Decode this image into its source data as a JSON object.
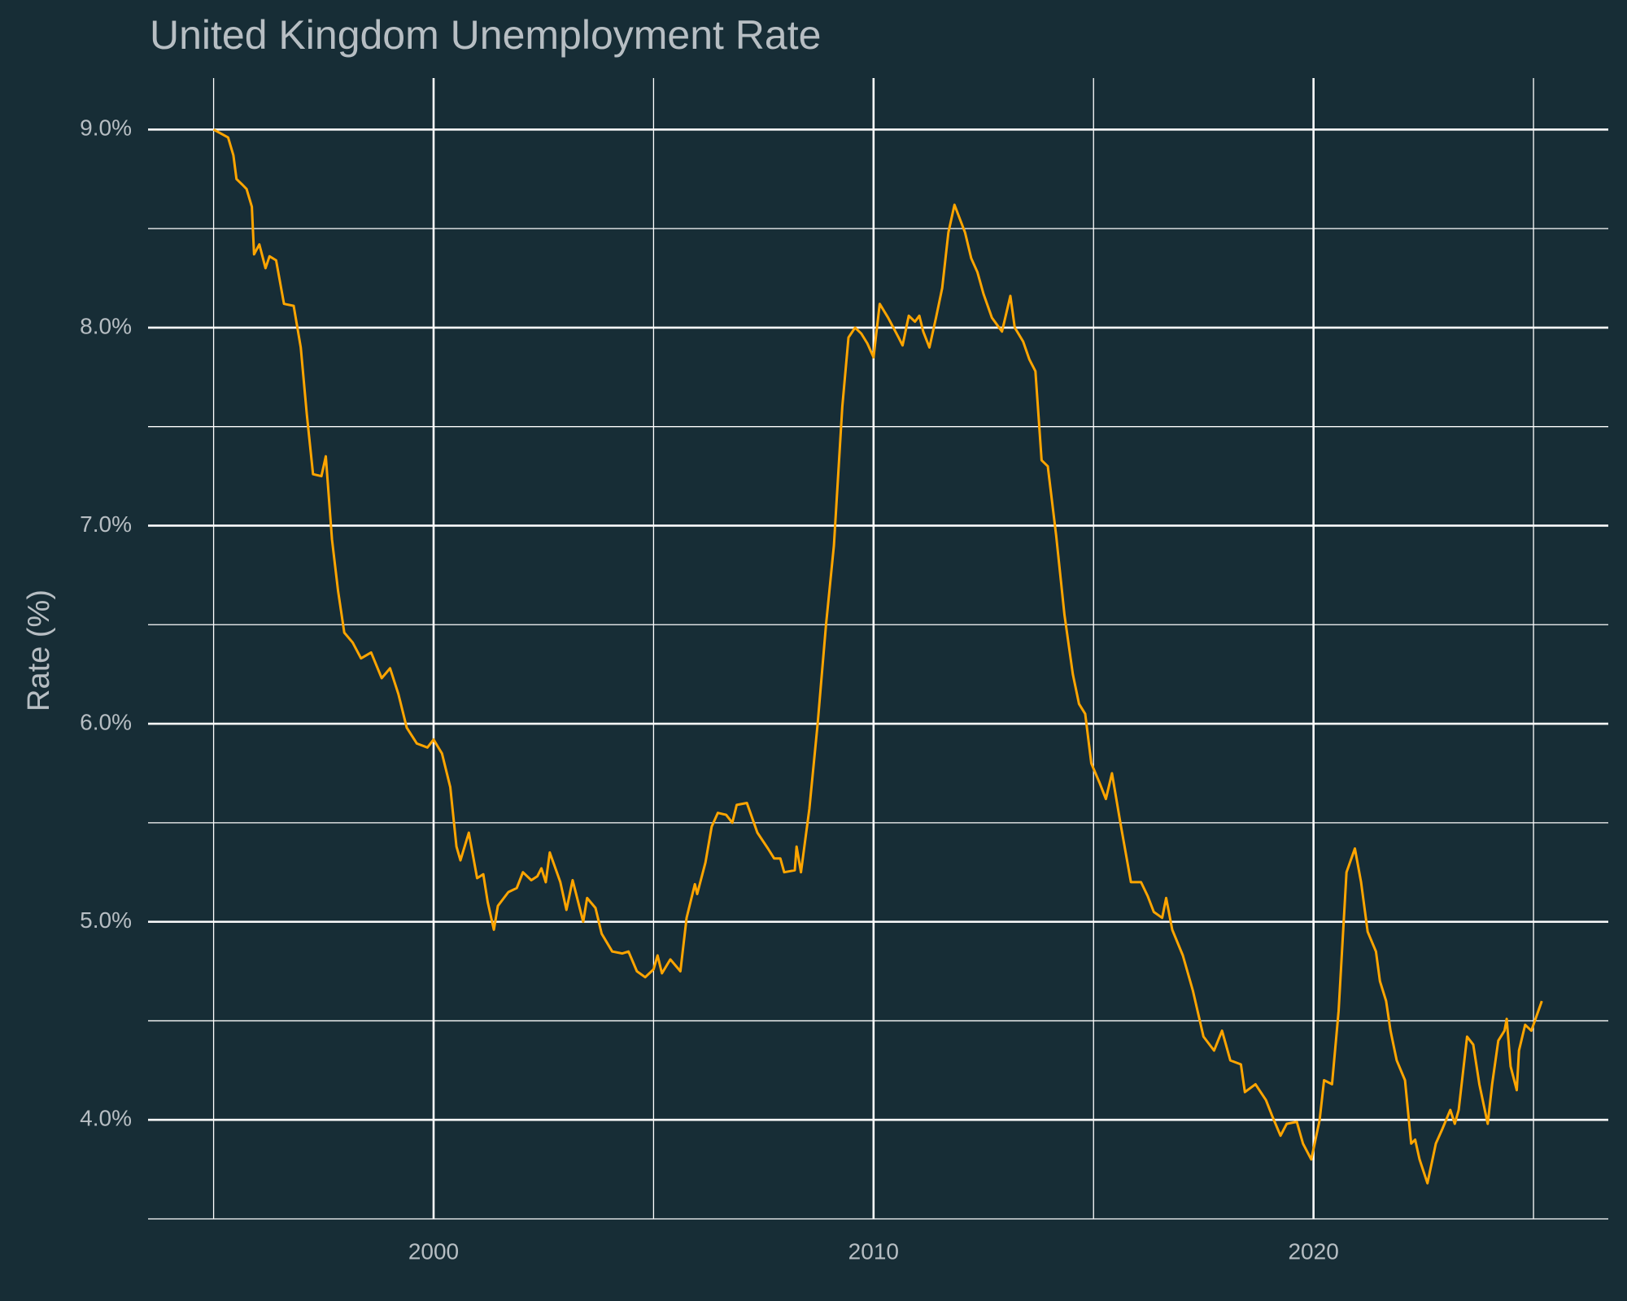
{
  "chart_data": {
    "type": "line",
    "title": "United Kingdom Unemployment Rate",
    "y_label": "Rate (%)",
    "color": "#ffa500",
    "background": "#172d36",
    "grid": true,
    "x": [
      1995.0,
      1995.33,
      1995.45,
      1995.52,
      1995.66,
      1995.75,
      1995.87,
      1995.92,
      1996.04,
      1996.18,
      1996.27,
      1996.42,
      1996.6,
      1996.82,
      1996.98,
      1997.12,
      1997.26,
      1997.45,
      1997.55,
      1997.69,
      1997.83,
      1997.97,
      1998.16,
      1998.35,
      1998.58,
      1998.82,
      1999.01,
      1999.2,
      1999.39,
      1999.62,
      1999.86,
      2000.0,
      2000.19,
      2000.38,
      2000.52,
      2000.61,
      2000.8,
      2000.99,
      2001.13,
      2001.23,
      2001.37,
      2001.46,
      2001.7,
      2001.89,
      2002.03,
      2002.22,
      2002.36,
      2002.45,
      2002.55,
      2002.64,
      2002.88,
      2003.02,
      2003.16,
      2003.4,
      2003.49,
      2003.68,
      2003.82,
      2004.06,
      2004.29,
      2004.43,
      2004.62,
      2004.81,
      2005.0,
      2005.09,
      2005.19,
      2005.38,
      2005.61,
      2005.75,
      2005.94,
      2005.99,
      2006.18,
      2006.32,
      2006.46,
      2006.65,
      2006.79,
      2006.89,
      2007.12,
      2007.36,
      2007.6,
      2007.74,
      2007.88,
      2007.97,
      2008.21,
      2008.25,
      2008.35,
      2008.54,
      2008.73,
      2008.92,
      2009.1,
      2009.29,
      2009.43,
      2009.58,
      2009.72,
      2009.86,
      2010.0,
      2010.14,
      2010.33,
      2010.57,
      2010.66,
      2010.8,
      2010.94,
      2011.04,
      2011.13,
      2011.27,
      2011.42,
      2011.56,
      2011.7,
      2011.84,
      2012.08,
      2012.22,
      2012.36,
      2012.5,
      2012.69,
      2012.92,
      2013.11,
      2013.21,
      2013.4,
      2013.54,
      2013.68,
      2013.82,
      2013.96,
      2014.15,
      2014.34,
      2014.53,
      2014.67,
      2014.81,
      2014.95,
      2015.14,
      2015.28,
      2015.42,
      2015.61,
      2015.85,
      2016.08,
      2016.23,
      2016.37,
      2016.56,
      2016.65,
      2016.79,
      2017.03,
      2017.26,
      2017.5,
      2017.74,
      2017.92,
      2018.11,
      2018.35,
      2018.44,
      2018.68,
      2018.92,
      2019.06,
      2019.25,
      2019.39,
      2019.62,
      2019.76,
      2019.95,
      2020.14,
      2020.24,
      2020.42,
      2020.57,
      2020.75,
      2020.94,
      2021.08,
      2021.23,
      2021.42,
      2021.51,
      2021.65,
      2021.75,
      2021.89,
      2022.08,
      2022.22,
      2022.31,
      2022.41,
      2022.59,
      2022.78,
      2022.92,
      2023.11,
      2023.21,
      2023.3,
      2023.49,
      2023.63,
      2023.77,
      2023.96,
      2024.06,
      2024.2,
      2024.34,
      2024.39,
      2024.48,
      2024.62,
      2024.67,
      2024.81,
      2024.95,
      2025.19
    ],
    "values": [
      9.0,
      8.96,
      8.87,
      8.75,
      8.72,
      8.7,
      8.61,
      8.37,
      8.42,
      8.3,
      8.36,
      8.34,
      8.12,
      8.11,
      7.9,
      7.56,
      7.26,
      7.25,
      7.35,
      6.93,
      6.67,
      6.46,
      6.41,
      6.33,
      6.36,
      6.23,
      6.28,
      6.15,
      5.98,
      5.9,
      5.88,
      5.92,
      5.85,
      5.68,
      5.38,
      5.31,
      5.45,
      5.22,
      5.24,
      5.1,
      4.96,
      5.08,
      5.15,
      5.17,
      5.25,
      5.21,
      5.23,
      5.27,
      5.2,
      5.35,
      5.2,
      5.06,
      5.21,
      5.0,
      5.12,
      5.07,
      4.94,
      4.85,
      4.84,
      4.85,
      4.75,
      4.72,
      4.76,
      4.83,
      4.74,
      4.81,
      4.75,
      5.02,
      5.19,
      5.14,
      5.3,
      5.48,
      5.55,
      5.54,
      5.5,
      5.59,
      5.6,
      5.45,
      5.37,
      5.32,
      5.32,
      5.25,
      5.26,
      5.38,
      5.25,
      5.57,
      6.0,
      6.5,
      6.9,
      7.6,
      7.95,
      8.0,
      7.97,
      7.92,
      7.85,
      8.12,
      8.05,
      7.95,
      7.91,
      8.06,
      8.03,
      8.06,
      7.98,
      7.9,
      8.05,
      8.2,
      8.48,
      8.62,
      8.48,
      8.35,
      8.28,
      8.17,
      8.05,
      7.98,
      8.16,
      8.0,
      7.93,
      7.84,
      7.78,
      7.33,
      7.3,
      6.95,
      6.55,
      6.25,
      6.1,
      6.05,
      5.8,
      5.7,
      5.62,
      5.75,
      5.5,
      5.2,
      5.2,
      5.13,
      5.05,
      5.02,
      5.12,
      4.96,
      4.83,
      4.65,
      4.42,
      4.35,
      4.45,
      4.3,
      4.28,
      4.14,
      4.18,
      4.1,
      4.02,
      3.92,
      3.98,
      3.99,
      3.88,
      3.8,
      4.0,
      4.2,
      4.18,
      4.55,
      5.25,
      5.37,
      5.2,
      4.95,
      4.85,
      4.7,
      4.6,
      4.45,
      4.3,
      4.2,
      3.88,
      3.9,
      3.8,
      3.68,
      3.88,
      3.95,
      4.05,
      3.98,
      4.05,
      4.42,
      4.38,
      4.18,
      3.98,
      4.18,
      4.4,
      4.45,
      4.51,
      4.27,
      4.15,
      4.35,
      4.48,
      4.45,
      4.6
    ],
    "xlim": [
      1993.51,
      2026.7
    ],
    "xticks": [
      2000,
      2010,
      2020
    ],
    "xminor": [
      1995,
      2005,
      2015,
      2025
    ],
    "ylim": [
      3.5,
      9.26
    ],
    "yticks": [
      {
        "value": 4,
        "label": "4.0%"
      },
      {
        "value": 5,
        "label": "5.0%"
      },
      {
        "value": 6,
        "label": "6.0%"
      },
      {
        "value": 7,
        "label": "7.0%"
      },
      {
        "value": 8,
        "label": "8.0%"
      },
      {
        "value": 9,
        "label": "9.0%"
      }
    ],
    "yminor": [
      3.5,
      4.5,
      5.5,
      6.5,
      7.5,
      8.5
    ]
  }
}
